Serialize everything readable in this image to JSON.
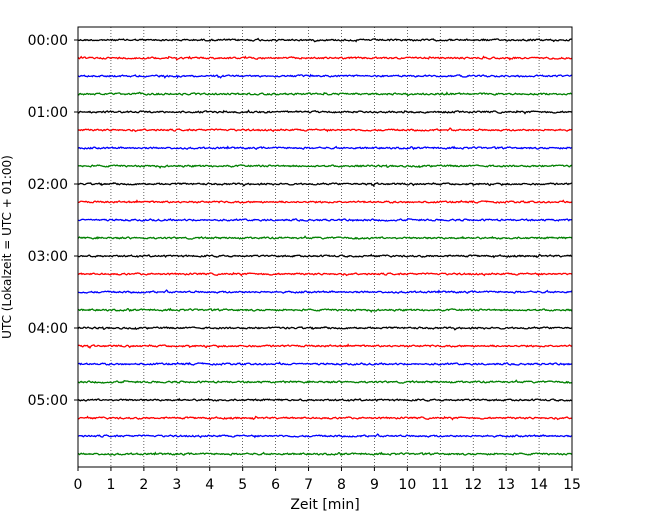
{
  "chart_data": {
    "type": "line",
    "title": "",
    "xlabel": "Zeit  [min]",
    "ylabel": "UTC (Lokalzeit = UTC + 01:00)",
    "xlim": [
      0,
      15
    ],
    "x_ticks": [
      "0",
      "1",
      "2",
      "3",
      "4",
      "5",
      "6",
      "7",
      "8",
      "9",
      "10",
      "11",
      "12",
      "13",
      "14",
      "15"
    ],
    "y_tick_labels": [
      "00:00",
      "01:00",
      "02:00",
      "03:00",
      "04:00",
      "05:00"
    ],
    "grid": "vertical dotted at each minute",
    "legend": "none",
    "trace_interval_minutes": 15,
    "trace_count": 24,
    "trace_colors": [
      "#000000",
      "#ff0000",
      "#0000ff",
      "#008000"
    ],
    "traces": [
      {
        "start": "00:00"
      },
      {
        "start": "00:15"
      },
      {
        "start": "00:30"
      },
      {
        "start": "00:45"
      },
      {
        "start": "01:00"
      },
      {
        "start": "01:15"
      },
      {
        "start": "01:30"
      },
      {
        "start": "01:45"
      },
      {
        "start": "02:00"
      },
      {
        "start": "02:15"
      },
      {
        "start": "02:30"
      },
      {
        "start": "02:45"
      },
      {
        "start": "03:00"
      },
      {
        "start": "03:15"
      },
      {
        "start": "03:30"
      },
      {
        "start": "03:45"
      },
      {
        "start": "04:00"
      },
      {
        "start": "04:15"
      },
      {
        "start": "04:30"
      },
      {
        "start": "04:45"
      },
      {
        "start": "05:00"
      },
      {
        "start": "05:15"
      },
      {
        "start": "05:30"
      },
      {
        "start": "05:45"
      }
    ]
  }
}
